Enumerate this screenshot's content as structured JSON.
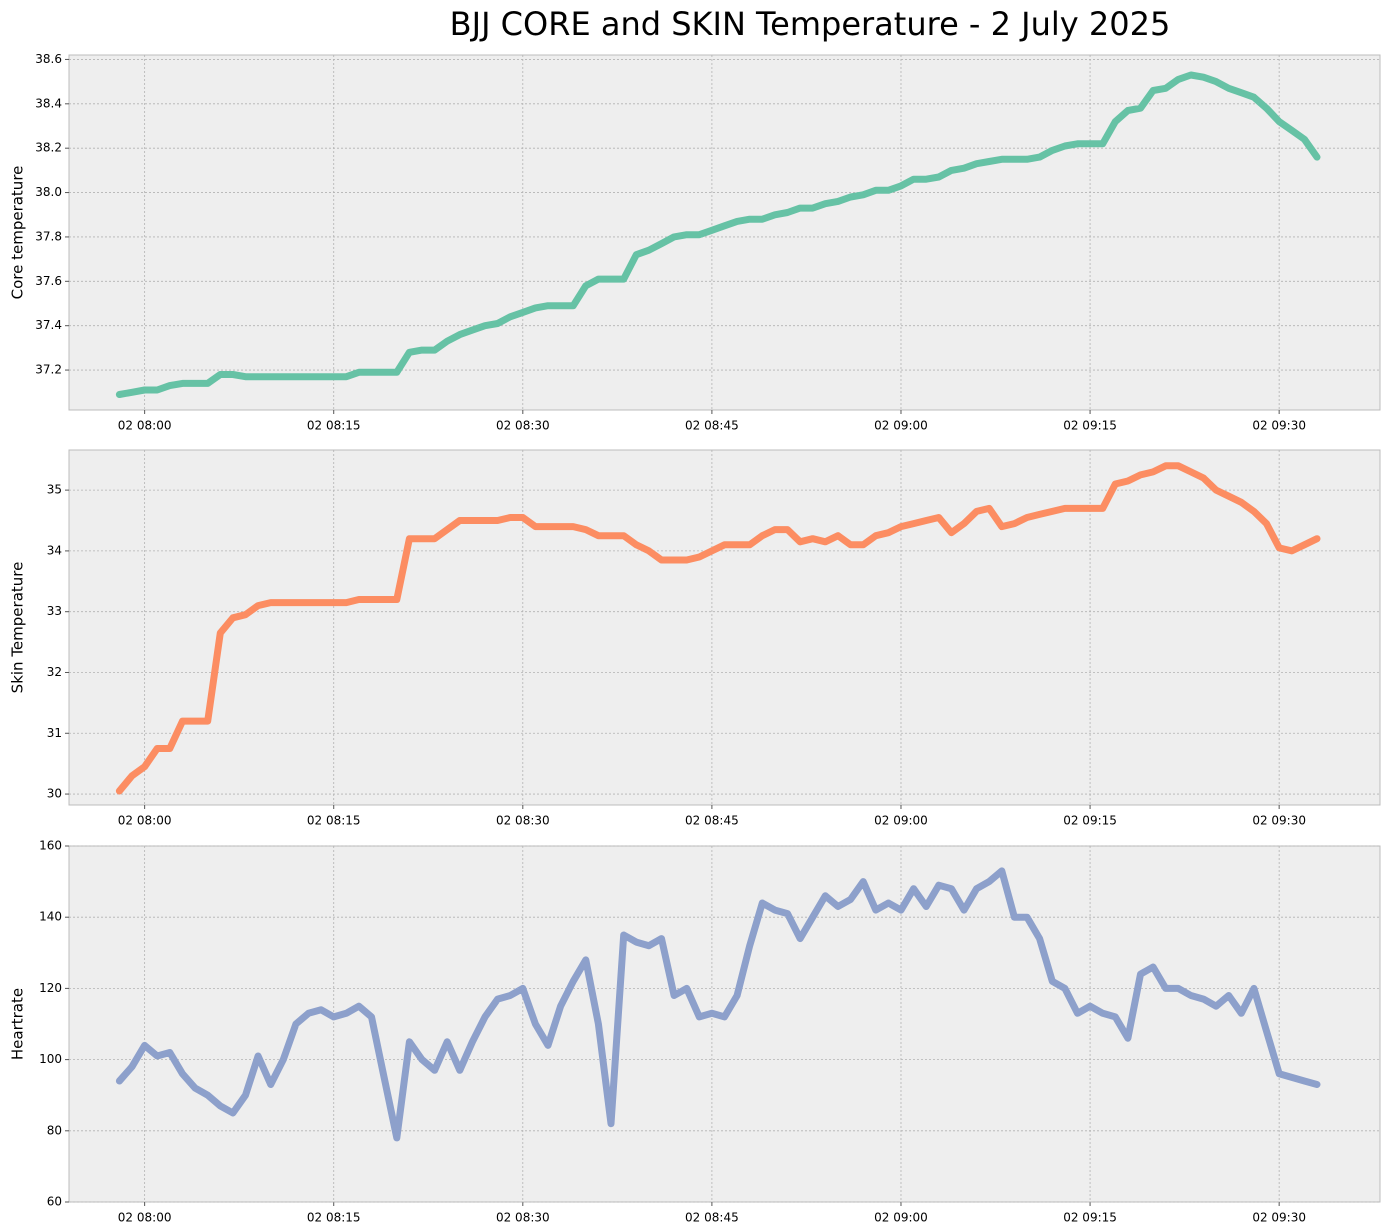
{
  "title": "BJJ CORE and SKIN Temperature  - 2 July 2025",
  "chart_data": [
    {
      "type": "line",
      "ylabel": "Core temperature",
      "color": "#66c2a5",
      "grid": true,
      "xlim": [
        "02 07:54",
        "02 09:38"
      ],
      "ylim": [
        37.02,
        38.62
      ],
      "xticks": [
        "02 08:00",
        "02 08:15",
        "02 08:30",
        "02 08:45",
        "02 09:00",
        "02 09:15",
        "02 09:30"
      ],
      "yticks": [
        {
          "value": 37.2,
          "label": "37.2"
        },
        {
          "value": 37.4,
          "label": "37.4"
        },
        {
          "value": 37.6,
          "label": "37.6"
        },
        {
          "value": 37.8,
          "label": "37.8"
        },
        {
          "value": 38.0,
          "label": "38.0"
        },
        {
          "value": 38.2,
          "label": "38.2"
        },
        {
          "value": 38.4,
          "label": "38.4"
        },
        {
          "value": 38.6,
          "label": "38.6"
        }
      ],
      "x": [
        "02 07:58",
        "02 07:59",
        "02 08:00",
        "02 08:01",
        "02 08:02",
        "02 08:03",
        "02 08:04",
        "02 08:05",
        "02 08:06",
        "02 08:07",
        "02 08:08",
        "02 08:09",
        "02 08:10",
        "02 08:11",
        "02 08:12",
        "02 08:13",
        "02 08:14",
        "02 08:15",
        "02 08:16",
        "02 08:17",
        "02 08:18",
        "02 08:19",
        "02 08:20",
        "02 08:21",
        "02 08:22",
        "02 08:23",
        "02 08:24",
        "02 08:25",
        "02 08:26",
        "02 08:27",
        "02 08:28",
        "02 08:29",
        "02 08:30",
        "02 08:31",
        "02 08:32",
        "02 08:33",
        "02 08:34",
        "02 08:35",
        "02 08:36",
        "02 08:37",
        "02 08:38",
        "02 08:39",
        "02 08:40",
        "02 08:41",
        "02 08:42",
        "02 08:43",
        "02 08:44",
        "02 08:45",
        "02 08:46",
        "02 08:47",
        "02 08:48",
        "02 08:49",
        "02 08:50",
        "02 08:51",
        "02 08:52",
        "02 08:53",
        "02 08:54",
        "02 08:55",
        "02 08:56",
        "02 08:57",
        "02 08:58",
        "02 08:59",
        "02 09:00",
        "02 09:01",
        "02 09:02",
        "02 09:03",
        "02 09:04",
        "02 09:05",
        "02 09:06",
        "02 09:07",
        "02 09:08",
        "02 09:09",
        "02 09:10",
        "02 09:11",
        "02 09:12",
        "02 09:13",
        "02 09:14",
        "02 09:15",
        "02 09:16",
        "02 09:17",
        "02 09:18",
        "02 09:19",
        "02 09:20",
        "02 09:21",
        "02 09:22",
        "02 09:23",
        "02 09:24",
        "02 09:25",
        "02 09:26",
        "02 09:27",
        "02 09:28",
        "02 09:29",
        "02 09:30",
        "02 09:31",
        "02 09:32",
        "02 09:33"
      ],
      "values": [
        37.09,
        37.1,
        37.11,
        37.11,
        37.13,
        37.14,
        37.14,
        37.14,
        37.18,
        37.18,
        37.17,
        37.17,
        37.17,
        37.17,
        37.17,
        37.17,
        37.17,
        37.17,
        37.17,
        37.19,
        37.19,
        37.19,
        37.19,
        37.28,
        37.29,
        37.29,
        37.33,
        37.36,
        37.38,
        37.4,
        37.41,
        37.44,
        37.46,
        37.48,
        37.49,
        37.49,
        37.49,
        37.58,
        37.61,
        37.61,
        37.61,
        37.72,
        37.74,
        37.77,
        37.8,
        37.81,
        37.81,
        37.83,
        37.85,
        37.87,
        37.88,
        37.88,
        37.9,
        37.91,
        37.93,
        37.93,
        37.95,
        37.96,
        37.98,
        37.99,
        38.01,
        38.01,
        38.03,
        38.06,
        38.06,
        38.07,
        38.1,
        38.11,
        38.13,
        38.14,
        38.15,
        38.15,
        38.15,
        38.16,
        38.19,
        38.21,
        38.22,
        38.22,
        38.22,
        38.32,
        38.37,
        38.38,
        38.46,
        38.47,
        38.51,
        38.53,
        38.52,
        38.5,
        38.47,
        38.45,
        38.43,
        38.38,
        38.32,
        38.28,
        38.24,
        38.16
      ]
    },
    {
      "type": "line",
      "ylabel": "Skin Temperature",
      "color": "#fc8d62",
      "grid": true,
      "xlim": [
        "02 07:54",
        "02 09:38"
      ],
      "ylim": [
        29.82,
        35.66
      ],
      "xticks": [
        "02 08:00",
        "02 08:15",
        "02 08:30",
        "02 08:45",
        "02 09:00",
        "02 09:15",
        "02 09:30"
      ],
      "yticks": [
        30,
        31,
        32,
        33,
        34,
        35
      ],
      "x": [
        "02 07:58",
        "02 07:59",
        "02 08:00",
        "02 08:01",
        "02 08:02",
        "02 08:03",
        "02 08:04",
        "02 08:05",
        "02 08:06",
        "02 08:07",
        "02 08:08",
        "02 08:09",
        "02 08:10",
        "02 08:11",
        "02 08:12",
        "02 08:13",
        "02 08:14",
        "02 08:15",
        "02 08:16",
        "02 08:17",
        "02 08:18",
        "02 08:19",
        "02 08:20",
        "02 08:21",
        "02 08:22",
        "02 08:23",
        "02 08:24",
        "02 08:25",
        "02 08:26",
        "02 08:27",
        "02 08:28",
        "02 08:29",
        "02 08:30",
        "02 08:31",
        "02 08:32",
        "02 08:33",
        "02 08:34",
        "02 08:35",
        "02 08:36",
        "02 08:37",
        "02 08:38",
        "02 08:39",
        "02 08:40",
        "02 08:41",
        "02 08:42",
        "02 08:43",
        "02 08:44",
        "02 08:45",
        "02 08:46",
        "02 08:47",
        "02 08:48",
        "02 08:49",
        "02 08:50",
        "02 08:51",
        "02 08:52",
        "02 08:53",
        "02 08:54",
        "02 08:55",
        "02 08:56",
        "02 08:57",
        "02 08:58",
        "02 08:59",
        "02 09:00",
        "02 09:01",
        "02 09:02",
        "02 09:03",
        "02 09:04",
        "02 09:05",
        "02 09:06",
        "02 09:07",
        "02 09:08",
        "02 09:09",
        "02 09:10",
        "02 09:11",
        "02 09:12",
        "02 09:13",
        "02 09:14",
        "02 09:15",
        "02 09:16",
        "02 09:17",
        "02 09:18",
        "02 09:19",
        "02 09:20",
        "02 09:21",
        "02 09:22",
        "02 09:23",
        "02 09:24",
        "02 09:25",
        "02 09:26",
        "02 09:27",
        "02 09:28",
        "02 09:29",
        "02 09:30",
        "02 09:31",
        "02 09:32",
        "02 09:33"
      ],
      "values": [
        30.05,
        30.3,
        30.45,
        30.75,
        30.75,
        31.2,
        31.2,
        31.2,
        32.65,
        32.9,
        32.95,
        33.1,
        33.15,
        33.15,
        33.15,
        33.15,
        33.15,
        33.15,
        33.15,
        33.2,
        33.2,
        33.2,
        33.2,
        34.2,
        34.2,
        34.2,
        34.35,
        34.5,
        34.5,
        34.5,
        34.5,
        34.55,
        34.55,
        34.4,
        34.4,
        34.4,
        34.4,
        34.35,
        34.25,
        34.25,
        34.25,
        34.1,
        34.0,
        33.85,
        33.85,
        33.85,
        33.9,
        34.0,
        34.1,
        34.1,
        34.1,
        34.25,
        34.35,
        34.35,
        34.15,
        34.2,
        34.15,
        34.25,
        34.1,
        34.1,
        34.25,
        34.3,
        34.4,
        34.45,
        34.5,
        34.55,
        34.3,
        34.45,
        34.65,
        34.7,
        34.4,
        34.45,
        34.55,
        34.6,
        34.65,
        34.7,
        34.7,
        34.7,
        34.7,
        35.1,
        35.15,
        35.25,
        35.3,
        35.4,
        35.4,
        35.3,
        35.2,
        35.0,
        34.9,
        34.8,
        34.65,
        34.45,
        34.05,
        34.0,
        34.1,
        34.2
      ]
    },
    {
      "type": "line",
      "ylabel": "Heartrate",
      "color": "#8da0cb",
      "grid": true,
      "xlim": [
        "02 07:54",
        "02 09:38"
      ],
      "ylim": [
        60,
        160
      ],
      "xticks": [
        "02 08:00",
        "02 08:15",
        "02 08:30",
        "02 08:45",
        "02 09:00",
        "02 09:15",
        "02 09:30"
      ],
      "yticks": [
        60,
        80,
        100,
        120,
        140,
        160
      ],
      "x": [
        "02 07:58",
        "02 07:59",
        "02 08:00",
        "02 08:01",
        "02 08:02",
        "02 08:03",
        "02 08:04",
        "02 08:05",
        "02 08:06",
        "02 08:07",
        "02 08:08",
        "02 08:09",
        "02 08:10",
        "02 08:11",
        "02 08:12",
        "02 08:13",
        "02 08:14",
        "02 08:15",
        "02 08:16",
        "02 08:17",
        "02 08:18",
        "02 08:19",
        "02 08:20",
        "02 08:21",
        "02 08:22",
        "02 08:23",
        "02 08:24",
        "02 08:25",
        "02 08:26",
        "02 08:27",
        "02 08:28",
        "02 08:29",
        "02 08:30",
        "02 08:31",
        "02 08:32",
        "02 08:33",
        "02 08:34",
        "02 08:35",
        "02 08:36",
        "02 08:37",
        "02 08:38",
        "02 08:39",
        "02 08:40",
        "02 08:41",
        "02 08:42",
        "02 08:43",
        "02 08:44",
        "02 08:45",
        "02 08:46",
        "02 08:47",
        "02 08:48",
        "02 08:49",
        "02 08:50",
        "02 08:51",
        "02 08:52",
        "02 08:53",
        "02 08:54",
        "02 08:55",
        "02 08:56",
        "02 08:57",
        "02 08:58",
        "02 08:59",
        "02 09:00",
        "02 09:01",
        "02 09:02",
        "02 09:03",
        "02 09:04",
        "02 09:05",
        "02 09:06",
        "02 09:07",
        "02 09:08",
        "02 09:09",
        "02 09:10",
        "02 09:11",
        "02 09:12",
        "02 09:13",
        "02 09:14",
        "02 09:15",
        "02 09:16",
        "02 09:17",
        "02 09:18",
        "02 09:19",
        "02 09:20",
        "02 09:21",
        "02 09:22",
        "02 09:23",
        "02 09:24",
        "02 09:25",
        "02 09:26",
        "02 09:27",
        "02 09:28",
        "02 09:29",
        "02 09:30",
        "02 09:31",
        "02 09:32",
        "02 09:33"
      ],
      "values": [
        94,
        98,
        104,
        101,
        102,
        96,
        92,
        90,
        87,
        85,
        90,
        101,
        93,
        100,
        110,
        113,
        114,
        112,
        113,
        115,
        112,
        95,
        78,
        105,
        100,
        97,
        105,
        97,
        105,
        112,
        117,
        118,
        120,
        110,
        104,
        115,
        122,
        128,
        110,
        82,
        135,
        133,
        132,
        134,
        118,
        120,
        112,
        113,
        112,
        118,
        132,
        144,
        142,
        141,
        134,
        140,
        146,
        143,
        145,
        150,
        142,
        144,
        142,
        148,
        143,
        149,
        148,
        142,
        148,
        150,
        153,
        140,
        140,
        134,
        122,
        120,
        113,
        115,
        113,
        112,
        106,
        124,
        126,
        120,
        120,
        118,
        117,
        115,
        118,
        113,
        120,
        108,
        96,
        95,
        94,
        93
      ]
    }
  ]
}
